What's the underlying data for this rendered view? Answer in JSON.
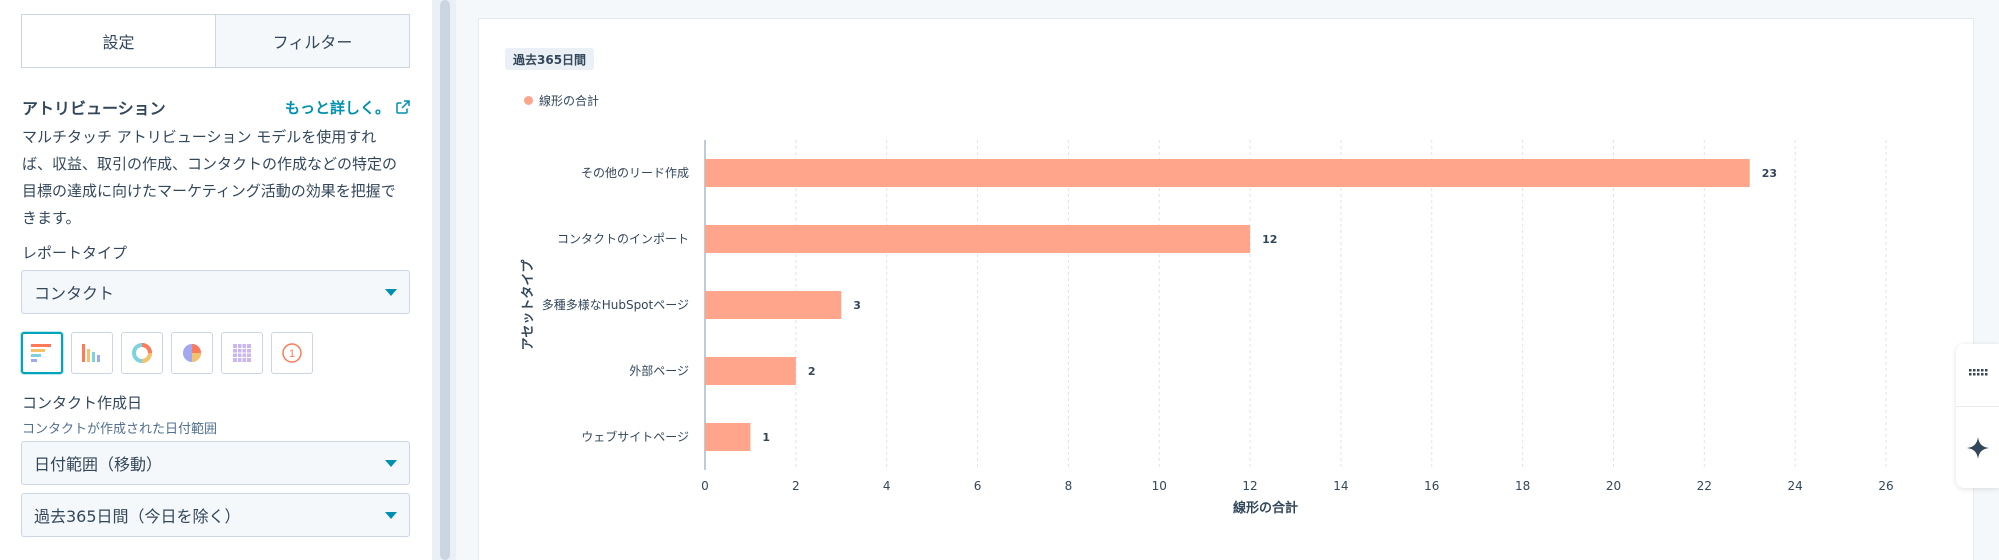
{
  "tabs": [
    {
      "label": "設定",
      "active": true
    },
    {
      "label": "フィルター",
      "active": false
    }
  ],
  "attribution": {
    "title": "アトリビューション",
    "link_label": "もっと詳しく。",
    "description_lines": [
      "マルチタッチ アトリビューション モデルを使用すれ",
      "ば、収益、取引の作成、コンタクトの作成などの特定の",
      "目標の達成に向けたマーケティング活動の効果を把握で",
      "きます。"
    ]
  },
  "report_type": {
    "label": "レポートタイプ",
    "value": "コンタクト"
  },
  "chart_types": [
    {
      "icon": "horizontal-bar-chart-icon",
      "selected": true
    },
    {
      "icon": "vertical-bar-chart-icon",
      "selected": false
    },
    {
      "icon": "donut-chart-icon",
      "selected": false
    },
    {
      "icon": "pie-chart-icon",
      "selected": false
    },
    {
      "icon": "table-grid-icon",
      "selected": false
    },
    {
      "icon": "single-value-icon",
      "selected": false,
      "label": "1"
    }
  ],
  "date_field": {
    "label": "コンタクト作成日",
    "sublabel": "コンタクトが作成された日付範囲",
    "range_type": "日付範囲（移動）",
    "range_value": "過去365日間（今日を除く）"
  },
  "badge": "過去365日間",
  "legend": "線形の合計",
  "colors": {
    "bar": "#ffa58c",
    "accent": "#0091ae",
    "selected_border": "#00a4bd"
  },
  "chart_data": {
    "type": "bar",
    "orientation": "horizontal",
    "categories": [
      "その他のリード作成",
      "コンタクトのインポート",
      "多種多様なHubSpotページ",
      "外部ページ",
      "ウェブサイトページ"
    ],
    "series": [
      {
        "name": "線形の合計",
        "values": [
          23,
          12,
          3,
          2,
          1
        ]
      }
    ],
    "xlabel": "線形の合計",
    "ylabel": "アセットタイプ",
    "xlim": [
      0,
      26
    ],
    "xticks": [
      0,
      2,
      4,
      6,
      8,
      10,
      12,
      14,
      16,
      18,
      20,
      22,
      24,
      26
    ],
    "grid": true,
    "legend_position": "top-left"
  },
  "rail": {
    "items": [
      {
        "icon": "keyboard-icon"
      },
      {
        "icon": "sparkle-icon"
      }
    ]
  }
}
